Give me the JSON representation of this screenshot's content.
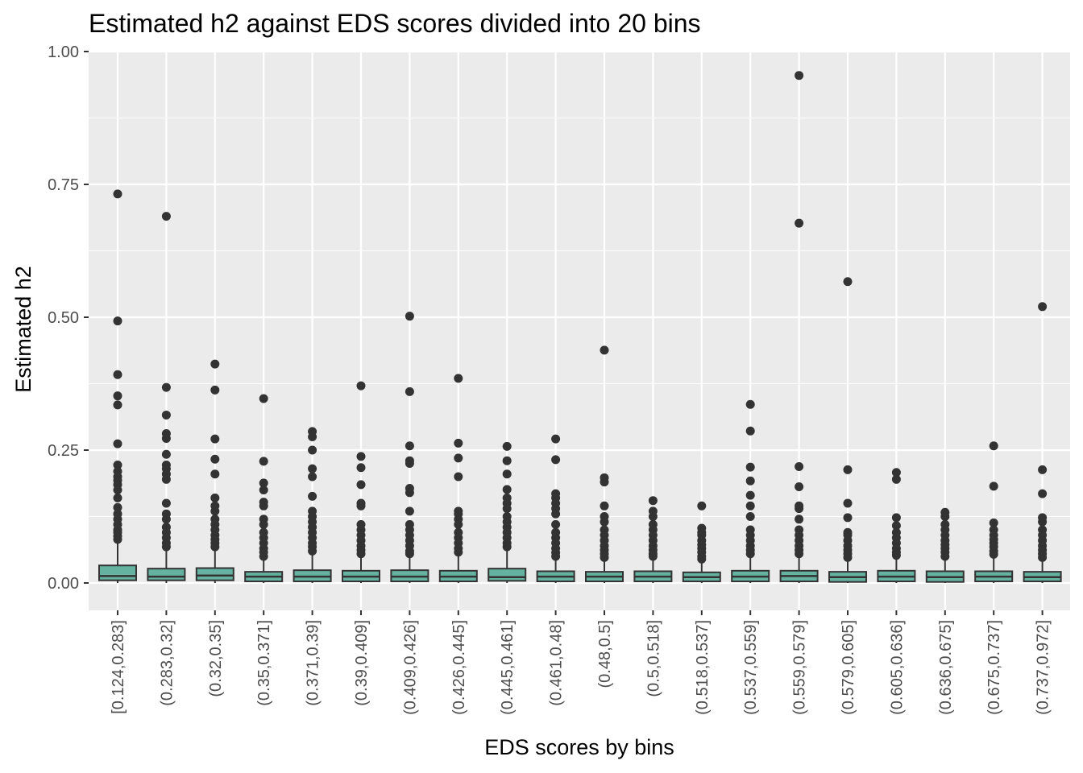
{
  "chart_data": {
    "type": "boxplot",
    "title": "Estimated h2 against EDS scores divided into 20 bins",
    "xlabel": "EDS scores by bins",
    "ylabel": "Estimated h2",
    "ylim": [
      -0.05,
      1.0
    ],
    "yticks": [
      "0.00",
      "0.25",
      "0.50",
      "0.75",
      "1.00"
    ],
    "ytick_values": [
      0,
      0.25,
      0.5,
      0.75,
      1.0
    ],
    "grid": true,
    "legend": "none",
    "colors": {
      "box_fill": "#66b2a0",
      "box_stroke": "#333333",
      "outlier": "#333333",
      "panel_bg": "#ebebeb",
      "grid": "#ffffff"
    },
    "categories": [
      "[0.124,0.283]",
      "(0.283,0.32]",
      "(0.32,0.35]",
      "(0.35,0.371]",
      "(0.371,0.39]",
      "(0.39,0.409]",
      "(0.409,0.426]",
      "(0.426,0.445]",
      "(0.445,0.461]",
      "(0.461,0.48]",
      "(0.48,0.5]",
      "(0.5,0.518]",
      "(0.518,0.537]",
      "(0.537,0.559]",
      "(0.559,0.579]",
      "(0.579,0.605]",
      "(0.605,0.636]",
      "(0.636,0.675]",
      "(0.675,0.737]",
      "(0.737,0.972]"
    ],
    "boxes": [
      {
        "q1": 0.005,
        "median": 0.013,
        "q3": 0.033,
        "whisker_low": 0.0,
        "whisker_high": 0.075,
        "outliers": [
          0.732,
          0.493,
          0.392,
          0.352,
          0.335,
          0.262,
          0.222,
          0.21,
          0.2,
          0.193,
          0.185,
          0.175,
          0.16,
          0.142,
          0.13,
          0.12,
          0.11,
          0.1,
          0.095,
          0.088,
          0.082
        ]
      },
      {
        "q1": 0.005,
        "median": 0.012,
        "q3": 0.027,
        "whisker_low": 0.0,
        "whisker_high": 0.06,
        "outliers": [
          0.69,
          0.368,
          0.316,
          0.281,
          0.272,
          0.242,
          0.222,
          0.215,
          0.205,
          0.195,
          0.15,
          0.13,
          0.12,
          0.105,
          0.095,
          0.085,
          0.075,
          0.068
        ]
      },
      {
        "q1": 0.005,
        "median": 0.014,
        "q3": 0.028,
        "whisker_low": 0.0,
        "whisker_high": 0.06,
        "outliers": [
          0.412,
          0.363,
          0.271,
          0.233,
          0.205,
          0.16,
          0.145,
          0.135,
          0.12,
          0.11,
          0.1,
          0.09,
          0.082,
          0.075,
          0.068
        ]
      },
      {
        "q1": 0.003,
        "median": 0.012,
        "q3": 0.021,
        "whisker_low": 0.0,
        "whisker_high": 0.045,
        "outliers": [
          0.347,
          0.229,
          0.188,
          0.175,
          0.152,
          0.145,
          0.12,
          0.11,
          0.095,
          0.085,
          0.075,
          0.065,
          0.058,
          0.05
        ]
      },
      {
        "q1": 0.003,
        "median": 0.012,
        "q3": 0.024,
        "whisker_low": 0.0,
        "whisker_high": 0.055,
        "outliers": [
          0.285,
          0.275,
          0.25,
          0.215,
          0.2,
          0.163,
          0.135,
          0.125,
          0.115,
          0.105,
          0.095,
          0.085,
          0.075,
          0.068,
          0.06
        ]
      },
      {
        "q1": 0.003,
        "median": 0.012,
        "q3": 0.023,
        "whisker_low": 0.0,
        "whisker_high": 0.05,
        "outliers": [
          0.371,
          0.238,
          0.217,
          0.185,
          0.15,
          0.145,
          0.11,
          0.1,
          0.09,
          0.08,
          0.07,
          0.062,
          0.055
        ]
      },
      {
        "q1": 0.003,
        "median": 0.012,
        "q3": 0.024,
        "whisker_low": 0.0,
        "whisker_high": 0.05,
        "outliers": [
          0.502,
          0.36,
          0.258,
          0.23,
          0.225,
          0.178,
          0.17,
          0.135,
          0.11,
          0.1,
          0.09,
          0.08,
          0.07,
          0.06,
          0.055
        ]
      },
      {
        "q1": 0.003,
        "median": 0.012,
        "q3": 0.023,
        "whisker_low": 0.0,
        "whisker_high": 0.05,
        "outliers": [
          0.385,
          0.263,
          0.235,
          0.2,
          0.135,
          0.13,
          0.12,
          0.11,
          0.095,
          0.085,
          0.075,
          0.065,
          0.058
        ]
      },
      {
        "q1": 0.004,
        "median": 0.011,
        "q3": 0.027,
        "whisker_low": 0.0,
        "whisker_high": 0.06,
        "outliers": [
          0.257,
          0.23,
          0.205,
          0.176,
          0.16,
          0.15,
          0.14,
          0.125,
          0.115,
          0.105,
          0.095,
          0.085,
          0.075,
          0.068
        ]
      },
      {
        "q1": 0.003,
        "median": 0.012,
        "q3": 0.022,
        "whisker_low": 0.0,
        "whisker_high": 0.048,
        "outliers": [
          0.271,
          0.232,
          0.168,
          0.16,
          0.15,
          0.14,
          0.13,
          0.11,
          0.095,
          0.085,
          0.075,
          0.065,
          0.057,
          0.05
        ]
      },
      {
        "q1": 0.003,
        "median": 0.012,
        "q3": 0.021,
        "whisker_low": 0.0,
        "whisker_high": 0.042,
        "outliers": [
          0.438,
          0.198,
          0.19,
          0.145,
          0.125,
          0.115,
          0.1,
          0.09,
          0.08,
          0.07,
          0.062,
          0.055,
          0.048
        ]
      },
      {
        "q1": 0.003,
        "median": 0.012,
        "q3": 0.022,
        "whisker_low": 0.0,
        "whisker_high": 0.045,
        "outliers": [
          0.155,
          0.135,
          0.125,
          0.11,
          0.1,
          0.09,
          0.08,
          0.07,
          0.062,
          0.055,
          0.05
        ]
      },
      {
        "q1": 0.003,
        "median": 0.011,
        "q3": 0.02,
        "whisker_low": 0.0,
        "whisker_high": 0.04,
        "outliers": [
          0.145,
          0.103,
          0.095,
          0.09,
          0.08,
          0.072,
          0.065,
          0.058,
          0.05,
          0.045
        ]
      },
      {
        "q1": 0.003,
        "median": 0.012,
        "q3": 0.023,
        "whisker_low": 0.0,
        "whisker_high": 0.05,
        "outliers": [
          0.336,
          0.286,
          0.218,
          0.192,
          0.165,
          0.145,
          0.125,
          0.1,
          0.09,
          0.08,
          0.07,
          0.062,
          0.055
        ]
      },
      {
        "q1": 0.003,
        "median": 0.013,
        "q3": 0.023,
        "whisker_low": 0.0,
        "whisker_high": 0.05,
        "outliers": [
          0.955,
          0.677,
          0.219,
          0.181,
          0.145,
          0.14,
          0.12,
          0.1,
          0.09,
          0.08,
          0.07,
          0.062,
          0.055
        ]
      },
      {
        "q1": 0.002,
        "median": 0.011,
        "q3": 0.021,
        "whisker_low": 0.0,
        "whisker_high": 0.04,
        "outliers": [
          0.567,
          0.213,
          0.15,
          0.123,
          0.095,
          0.09,
          0.08,
          0.07,
          0.062,
          0.055,
          0.048
        ]
      },
      {
        "q1": 0.003,
        "median": 0.012,
        "q3": 0.023,
        "whisker_low": 0.0,
        "whisker_high": 0.048,
        "outliers": [
          0.208,
          0.195,
          0.123,
          0.108,
          0.095,
          0.085,
          0.075,
          0.065,
          0.058,
          0.052
        ]
      },
      {
        "q1": 0.002,
        "median": 0.011,
        "q3": 0.022,
        "whisker_low": 0.0,
        "whisker_high": 0.045,
        "outliers": [
          0.133,
          0.125,
          0.11,
          0.1,
          0.09,
          0.08,
          0.072,
          0.065,
          0.058,
          0.05
        ]
      },
      {
        "q1": 0.003,
        "median": 0.012,
        "q3": 0.022,
        "whisker_low": 0.0,
        "whisker_high": 0.048,
        "outliers": [
          0.258,
          0.182,
          0.113,
          0.1,
          0.09,
          0.082,
          0.075,
          0.068,
          0.06,
          0.054
        ]
      },
      {
        "q1": 0.003,
        "median": 0.011,
        "q3": 0.021,
        "whisker_low": 0.0,
        "whisker_high": 0.042,
        "outliers": [
          0.52,
          0.213,
          0.168,
          0.123,
          0.115,
          0.1,
          0.09,
          0.08,
          0.07,
          0.062,
          0.055,
          0.048
        ]
      }
    ]
  }
}
